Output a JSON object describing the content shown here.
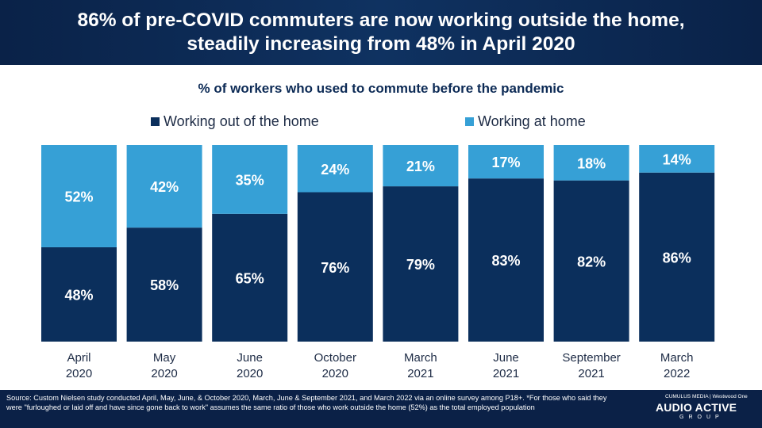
{
  "header": {
    "title_line1": "86% of pre-COVID commuters are now working outside the home,",
    "title_line2": "steadily increasing from 48% in April 2020"
  },
  "chart_data": {
    "type": "bar",
    "stacked": true,
    "title": "% of workers who used to commute before the pandemic",
    "categories": [
      [
        "April",
        "2020"
      ],
      [
        "May",
        "2020"
      ],
      [
        "June",
        "2020"
      ],
      [
        "October",
        "2020"
      ],
      [
        "March",
        "2021"
      ],
      [
        "June",
        "2021"
      ],
      [
        "September",
        "2021"
      ],
      [
        "March",
        "2022"
      ]
    ],
    "series": [
      {
        "name": "Working out of the home",
        "values": [
          48,
          58,
          65,
          76,
          79,
          83,
          82,
          86
        ],
        "color": "#0b2f5c"
      },
      {
        "name": "Working at home",
        "values": [
          52,
          42,
          35,
          24,
          21,
          17,
          18,
          14
        ],
        "color": "#36a0d6"
      }
    ],
    "ylim": [
      0,
      100
    ],
    "value_suffix": "%",
    "legend_position": "top",
    "grid": false
  },
  "footer": {
    "source": "Source: Custom Nielsen study conducted April, May, June, & October 2020, March, June & September 2021, and March 2022 via an online survey among P18+. *For those who said they were \"furloughed or laid off and have since gone back to work\" assumes the same ratio of those who work outside the home (52%) as the total employed population",
    "logo_top": "CUMULUS MEDIA | Westwood One",
    "logo_main": "AUDIO ACTIVE",
    "logo_sub": "GROUP"
  }
}
